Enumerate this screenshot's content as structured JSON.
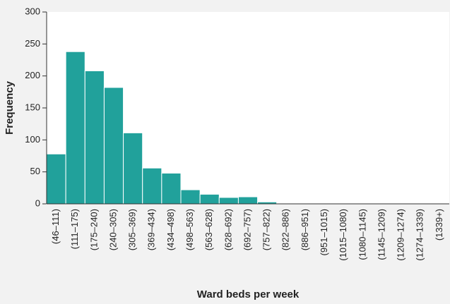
{
  "chart_data": {
    "type": "bar",
    "x_label": "Ward beds per week",
    "y_label": "Frequency",
    "categories": [
      "(46–111)",
      "(111–175)",
      "(175–240)",
      "(240–305)",
      "(305–369)",
      "(369–434)",
      "(434–498)",
      "(498–563)",
      "(563–628)",
      "(628–692)",
      "(692–757)",
      "(757–822)",
      "(822–886)",
      "(886–951)",
      "(951–1015)",
      "(1015–1080)",
      "(1080–1145)",
      "(1145–1209)",
      "(1209–1274)",
      "(1274–1339)",
      "(1339+)"
    ],
    "values": [
      78,
      238,
      208,
      182,
      111,
      56,
      48,
      22,
      15,
      10,
      11,
      3,
      1,
      1,
      0,
      1,
      0,
      1,
      1,
      1,
      0
    ],
    "color": "#21a19b",
    "ylim": [
      0,
      300
    ],
    "yticks": [
      0,
      50,
      100,
      150,
      200,
      250,
      300
    ]
  }
}
